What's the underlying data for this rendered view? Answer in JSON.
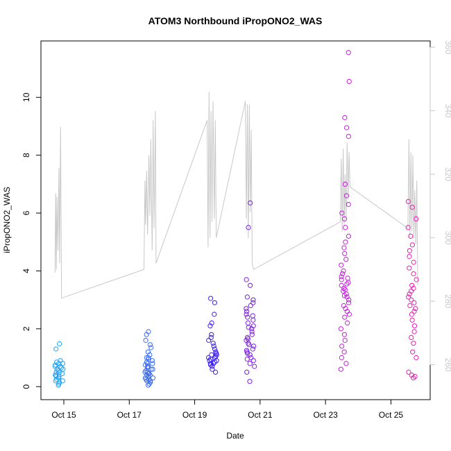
{
  "chart_data": {
    "type": "scatter",
    "title": "ATOM3 Northbound iPropONO2_WAS",
    "xlabel": "Date",
    "ylabel": "iPropONO2_WAS",
    "x_tick_labels": [
      "Oct 15",
      "Oct 17",
      "Oct 19",
      "Oct 21",
      "Oct 23",
      "Oct 25"
    ],
    "x_tick_days": [
      15,
      17,
      19,
      21,
      23,
      25
    ],
    "xlim": [
      14.3,
      26.2
    ],
    "ylim": [
      -0.45,
      11.95
    ],
    "y_ticks": [
      0,
      2,
      4,
      6,
      8,
      10
    ],
    "y2_label_color": "#c8c8c8",
    "y2_ticks": [
      260,
      280,
      300,
      320,
      340,
      360
    ],
    "y2lim": [
      249,
      362
    ],
    "line_color": "#c8c8c8",
    "clusters": [
      {
        "day": 14.85,
        "color": "#1aa3ff",
        "values": [
          0.1,
          0.15,
          0.2,
          0.25,
          0.3,
          0.35,
          0.4,
          0.45,
          0.5,
          0.55,
          0.6,
          0.65,
          0.7,
          0.75,
          0.8,
          0.85,
          0.9,
          1.3,
          1.48,
          0.3,
          0.5,
          0.7,
          0.2,
          0.6,
          0.4,
          0.05,
          0.8,
          0.35
        ]
      },
      {
        "day": 17.6,
        "color": "#3b6cf5",
        "values": [
          0.05,
          0.1,
          0.15,
          0.2,
          0.25,
          0.3,
          0.35,
          0.4,
          0.45,
          0.5,
          0.55,
          0.6,
          0.65,
          0.7,
          0.75,
          0.8,
          0.85,
          0.9,
          0.95,
          1.0,
          1.1,
          1.2,
          1.35,
          1.45,
          1.6,
          1.8,
          1.9,
          0.3,
          0.5,
          0.7,
          0.2,
          0.4,
          0.6,
          0.8,
          1.0,
          0.25,
          0.45
        ]
      },
      {
        "day": 19.55,
        "color": "#3a1fe6",
        "values": [
          0.5,
          0.6,
          0.7,
          0.75,
          0.8,
          0.85,
          0.9,
          0.95,
          1.0,
          1.05,
          1.1,
          1.15,
          1.2,
          1.3,
          1.4,
          1.5,
          1.6,
          1.7,
          1.8,
          2.1,
          2.2,
          2.5,
          2.9,
          3.05,
          0.9,
          1.0,
          1.1,
          0.8
        ]
      },
      {
        "day": 20.7,
        "color": "#7a1fe0",
        "values": [
          0.18,
          0.5,
          0.7,
          0.8,
          0.9,
          1.0,
          1.1,
          1.2,
          1.3,
          1.4,
          1.5,
          1.6,
          1.7,
          1.8,
          1.9,
          2.0,
          2.1,
          2.2,
          2.3,
          2.4,
          2.5,
          2.6,
          2.7,
          2.8,
          2.9,
          3.0,
          3.1,
          3.5,
          3.7,
          5.5,
          6.35,
          1.25,
          1.45,
          1.65,
          2.05,
          2.45,
          0.95,
          1.15
        ]
      },
      {
        "day": 23.6,
        "color": "#c21fd9",
        "values": [
          0.6,
          0.8,
          1.0,
          1.2,
          1.4,
          1.6,
          1.8,
          2.0,
          2.2,
          2.4,
          2.6,
          2.8,
          3.0,
          3.1,
          3.2,
          3.3,
          3.4,
          3.5,
          3.6,
          3.7,
          3.8,
          3.9,
          4.0,
          4.2,
          4.4,
          4.6,
          4.8,
          5.0,
          5.2,
          5.5,
          5.8,
          6.0,
          6.3,
          6.6,
          7.0,
          8.65,
          8.95,
          9.3,
          10.55,
          11.55,
          3.15,
          3.35,
          3.55,
          3.75,
          2.9,
          2.7,
          2.5
        ]
      },
      {
        "day": 25.65,
        "color": "#e81fb5",
        "values": [
          0.3,
          0.35,
          0.4,
          0.5,
          1.0,
          1.2,
          1.5,
          1.7,
          1.9,
          2.1,
          2.3,
          2.5,
          2.7,
          2.9,
          3.1,
          3.3,
          3.5,
          3.7,
          3.9,
          4.1,
          4.3,
          4.5,
          4.7,
          4.9,
          5.2,
          5.5,
          5.8,
          6.2,
          6.4,
          3.0,
          3.2,
          3.4,
          2.8,
          2.6
        ]
      }
    ],
    "line_series": [
      {
        "day": 14.73,
        "y2": 289
      },
      {
        "day": 14.75,
        "y2": 314
      },
      {
        "day": 14.77,
        "y2": 290
      },
      {
        "day": 14.79,
        "y2": 313
      },
      {
        "day": 14.82,
        "y2": 296
      },
      {
        "day": 14.85,
        "y2": 322
      },
      {
        "day": 14.87,
        "y2": 292
      },
      {
        "day": 14.9,
        "y2": 335
      },
      {
        "day": 14.93,
        "y2": 281
      },
      {
        "day": 17.45,
        "y2": 290
      },
      {
        "day": 17.48,
        "y2": 318
      },
      {
        "day": 17.5,
        "y2": 304
      },
      {
        "day": 17.53,
        "y2": 321
      },
      {
        "day": 17.56,
        "y2": 301
      },
      {
        "day": 17.6,
        "y2": 326
      },
      {
        "day": 17.63,
        "y2": 307
      },
      {
        "day": 17.66,
        "y2": 331
      },
      {
        "day": 17.7,
        "y2": 296
      },
      {
        "day": 17.73,
        "y2": 337
      },
      {
        "day": 17.76,
        "y2": 303
      },
      {
        "day": 17.8,
        "y2": 340
      },
      {
        "day": 17.82,
        "y2": 292
      },
      {
        "day": 19.38,
        "y2": 337
      },
      {
        "day": 19.41,
        "y2": 297
      },
      {
        "day": 19.44,
        "y2": 346
      },
      {
        "day": 19.47,
        "y2": 300
      },
      {
        "day": 19.5,
        "y2": 340
      },
      {
        "day": 19.53,
        "y2": 305
      },
      {
        "day": 19.56,
        "y2": 343
      },
      {
        "day": 19.6,
        "y2": 306
      },
      {
        "day": 19.63,
        "y2": 337
      },
      {
        "day": 19.66,
        "y2": 300
      },
      {
        "day": 20.55,
        "y2": 343
      },
      {
        "day": 20.58,
        "y2": 306
      },
      {
        "day": 20.61,
        "y2": 342
      },
      {
        "day": 20.64,
        "y2": 300
      },
      {
        "day": 20.67,
        "y2": 342
      },
      {
        "day": 20.7,
        "y2": 308
      },
      {
        "day": 20.73,
        "y2": 334
      },
      {
        "day": 20.76,
        "y2": 292
      },
      {
        "day": 20.8,
        "y2": 290
      },
      {
        "day": 23.45,
        "y2": 305
      },
      {
        "day": 23.48,
        "y2": 325
      },
      {
        "day": 23.51,
        "y2": 302
      },
      {
        "day": 23.54,
        "y2": 328
      },
      {
        "day": 23.57,
        "y2": 304
      },
      {
        "day": 23.6,
        "y2": 320
      },
      {
        "day": 23.63,
        "y2": 306
      },
      {
        "day": 23.66,
        "y2": 330
      },
      {
        "day": 23.69,
        "y2": 312
      },
      {
        "day": 23.72,
        "y2": 327
      },
      {
        "day": 23.75,
        "y2": 316
      },
      {
        "day": 25.52,
        "y2": 303
      },
      {
        "day": 25.55,
        "y2": 331
      },
      {
        "day": 25.58,
        "y2": 300
      },
      {
        "day": 25.61,
        "y2": 327
      },
      {
        "day": 25.64,
        "y2": 302
      },
      {
        "day": 25.67,
        "y2": 326
      },
      {
        "day": 25.7,
        "y2": 300
      },
      {
        "day": 25.73,
        "y2": 315
      },
      {
        "day": 25.76,
        "y2": 298
      },
      {
        "day": 25.79,
        "y2": 318
      },
      {
        "day": 25.82,
        "y2": 285
      }
    ]
  }
}
